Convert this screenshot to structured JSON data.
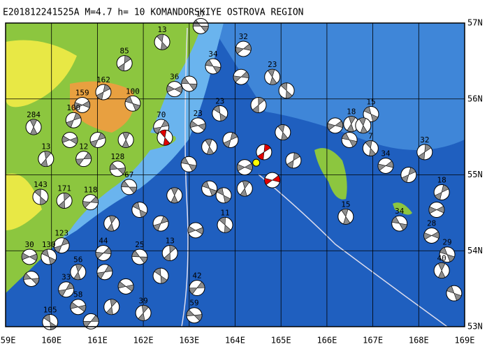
{
  "title": "E201812241525A M=4.7 h= 10 KOMANDORSKIYE OSTROVA REGION",
  "map": {
    "lon_range": [
      159,
      169
    ],
    "lat_range": [
      53,
      57
    ],
    "lon_ticks": [
      {
        "value": 159,
        "label": "159E"
      },
      {
        "value": 160,
        "label": "160E"
      },
      {
        "value": 161,
        "label": "161E"
      },
      {
        "value": 162,
        "label": "162E"
      },
      {
        "value": 163,
        "label": "163E"
      },
      {
        "value": 164,
        "label": "164E"
      },
      {
        "value": 165,
        "label": "165E"
      },
      {
        "value": 166,
        "label": "166E"
      },
      {
        "value": 167,
        "label": "167E"
      },
      {
        "value": 168,
        "label": "168E"
      },
      {
        "value": 169,
        "label": "169E"
      }
    ],
    "lat_ticks": [
      {
        "value": 57,
        "label": "57N"
      },
      {
        "value": 56,
        "label": "56N"
      },
      {
        "value": 55,
        "label": "55N"
      },
      {
        "value": 54,
        "label": "54N"
      },
      {
        "value": 53,
        "label": "53N"
      }
    ],
    "event_color": "#8c8c8c",
    "epicenter": {
      "lon": 164.46,
      "lat": 55.16,
      "color": "#ffff00"
    },
    "events": [
      {
        "lon": 163.25,
        "lat": 56.96,
        "label": "17"
      },
      {
        "lon": 162.41,
        "lat": 56.75,
        "label": "13"
      },
      {
        "lon": 161.59,
        "lat": 56.47,
        "label": "85"
      },
      {
        "lon": 164.18,
        "lat": 56.66,
        "label": "32"
      },
      {
        "lon": 163.52,
        "lat": 56.43,
        "label": "34"
      },
      {
        "lon": 164.81,
        "lat": 56.29,
        "label": "23"
      },
      {
        "lon": 161.13,
        "lat": 56.09,
        "label": "162"
      },
      {
        "lon": 160.67,
        "lat": 55.92,
        "label": "159"
      },
      {
        "lon": 161.77,
        "lat": 55.94,
        "label": "100"
      },
      {
        "lon": 159.61,
        "lat": 55.63,
        "label": "284"
      },
      {
        "lon": 160.48,
        "lat": 55.72,
        "label": "100"
      },
      {
        "lon": 162.68,
        "lat": 56.13,
        "label": "36"
      },
      {
        "lon": 166.96,
        "lat": 55.8,
        "label": "15"
      },
      {
        "lon": 166.53,
        "lat": 55.67,
        "label": "18"
      },
      {
        "lon": 162.39,
        "lat": 55.63,
        "label": "70"
      },
      {
        "lon": 163.19,
        "lat": 55.65,
        "label": "23"
      },
      {
        "lon": 163.67,
        "lat": 55.81,
        "label": "23"
      },
      {
        "lon": 159.88,
        "lat": 55.21,
        "label": "13"
      },
      {
        "lon": 160.7,
        "lat": 55.21,
        "label": "12"
      },
      {
        "lon": 161.44,
        "lat": 55.08,
        "label": "128"
      },
      {
        "lon": 159.76,
        "lat": 54.71,
        "label": "143"
      },
      {
        "lon": 160.28,
        "lat": 54.66,
        "label": "171"
      },
      {
        "lon": 160.85,
        "lat": 54.64,
        "label": "118"
      },
      {
        "lon": 161.69,
        "lat": 54.84,
        "label": "67"
      },
      {
        "lon": 166.95,
        "lat": 55.35,
        "label": "7"
      },
      {
        "lon": 168.13,
        "lat": 55.3,
        "label": "32"
      },
      {
        "lon": 167.28,
        "lat": 55.12,
        "label": "34"
      },
      {
        "lon": 167.58,
        "lat": 54.36,
        "label": "34"
      },
      {
        "lon": 166.41,
        "lat": 54.45,
        "label": "15"
      },
      {
        "lon": 168.5,
        "lat": 54.77,
        "label": "18"
      },
      {
        "lon": 168.28,
        "lat": 54.2,
        "label": "28"
      },
      {
        "lon": 168.62,
        "lat": 53.95,
        "label": "29"
      },
      {
        "lon": 168.5,
        "lat": 53.74,
        "label": "40"
      },
      {
        "lon": 160.22,
        "lat": 54.07,
        "label": "123"
      },
      {
        "lon": 159.52,
        "lat": 53.92,
        "label": "30"
      },
      {
        "lon": 159.94,
        "lat": 53.92,
        "label": "130"
      },
      {
        "lon": 160.58,
        "lat": 53.72,
        "label": "56"
      },
      {
        "lon": 160.32,
        "lat": 53.49,
        "label": "33"
      },
      {
        "lon": 160.58,
        "lat": 53.26,
        "label": "58"
      },
      {
        "lon": 159.97,
        "lat": 53.06,
        "label": "105"
      },
      {
        "lon": 162.0,
        "lat": 53.18,
        "label": "39"
      },
      {
        "lon": 163.17,
        "lat": 53.51,
        "label": "42"
      },
      {
        "lon": 163.11,
        "lat": 53.15,
        "label": "59"
      },
      {
        "lon": 163.78,
        "lat": 54.34,
        "label": "11"
      },
      {
        "lon": 162.58,
        "lat": 53.97,
        "label": "13"
      },
      {
        "lon": 161.13,
        "lat": 53.97,
        "label": "44"
      },
      {
        "lon": 161.92,
        "lat": 53.92,
        "label": "25"
      },
      {
        "lon": 162.47,
        "lat": 55.49,
        "color": "#e00000"
      },
      {
        "lon": 164.63,
        "lat": 55.3,
        "color": "#e00000"
      },
      {
        "lon": 164.81,
        "lat": 54.93,
        "color": "#e00000"
      },
      {
        "lon": 162.99,
        "lat": 55.14
      },
      {
        "lon": 163.44,
        "lat": 55.37
      },
      {
        "lon": 163.9,
        "lat": 55.46
      },
      {
        "lon": 164.21,
        "lat": 55.1
      },
      {
        "lon": 163.44,
        "lat": 54.82
      },
      {
        "lon": 162.68,
        "lat": 54.73
      },
      {
        "lon": 162.38,
        "lat": 54.36
      },
      {
        "lon": 163.14,
        "lat": 54.27
      },
      {
        "lon": 161.92,
        "lat": 54.54
      },
      {
        "lon": 161.31,
        "lat": 54.36
      },
      {
        "lon": 161.16,
        "lat": 53.72
      },
      {
        "lon": 161.62,
        "lat": 53.53
      },
      {
        "lon": 162.38,
        "lat": 53.67
      },
      {
        "lon": 161.31,
        "lat": 53.26
      },
      {
        "lon": 160.86,
        "lat": 53.07
      },
      {
        "lon": 159.56,
        "lat": 53.63
      },
      {
        "lon": 165.12,
        "lat": 56.11
      },
      {
        "lon": 164.51,
        "lat": 55.92
      },
      {
        "lon": 164.13,
        "lat": 56.29
      },
      {
        "lon": 163.0,
        "lat": 56.2
      },
      {
        "lon": 165.04,
        "lat": 55.56
      },
      {
        "lon": 165.27,
        "lat": 55.19
      },
      {
        "lon": 166.18,
        "lat": 55.65
      },
      {
        "lon": 166.49,
        "lat": 55.46
      },
      {
        "lon": 166.79,
        "lat": 55.65
      },
      {
        "lon": 167.78,
        "lat": 55.0
      },
      {
        "lon": 168.39,
        "lat": 54.54
      },
      {
        "lon": 168.77,
        "lat": 53.44
      },
      {
        "lon": 161.62,
        "lat": 55.46
      },
      {
        "lon": 161.01,
        "lat": 55.46
      },
      {
        "lon": 160.4,
        "lat": 55.46
      },
      {
        "lon": 163.75,
        "lat": 54.73
      },
      {
        "lon": 164.21,
        "lat": 54.82
      }
    ]
  }
}
